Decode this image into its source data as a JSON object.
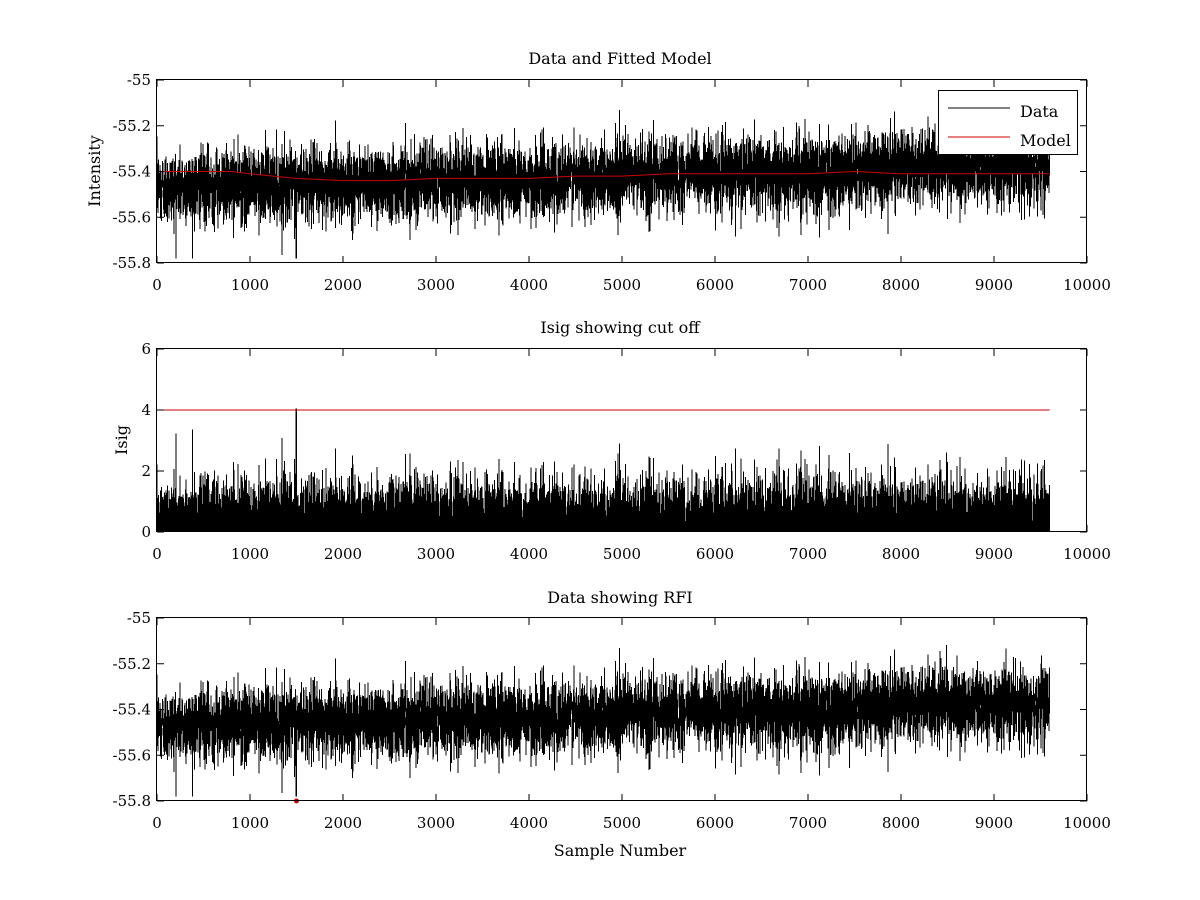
{
  "chart_data": [
    {
      "id": "top",
      "type": "line",
      "title": "Data and Fitted Model",
      "xlabel": "",
      "ylabel": "Intensity",
      "xlim": [
        0,
        10000
      ],
      "ylim": [
        -55.8,
        -55
      ],
      "xticks": [
        0,
        1000,
        2000,
        3000,
        4000,
        5000,
        6000,
        7000,
        8000,
        9000,
        10000
      ],
      "yticks": [
        -55,
        -55.2,
        -55.4,
        -55.6,
        -55.8
      ],
      "legend": {
        "position": "top-right",
        "entries": [
          "Data",
          "Model"
        ]
      },
      "series": [
        {
          "name": "Data",
          "color": "#000000",
          "kind": "noise",
          "n_samples": 9600,
          "trend_x": [
            0,
            1000,
            2000,
            3000,
            4000,
            5000,
            6000,
            7000,
            8000,
            9000,
            9600
          ],
          "trend_y": [
            -55.47,
            -55.46,
            -55.45,
            -55.44,
            -55.44,
            -55.42,
            -55.41,
            -55.41,
            -55.38,
            -55.38,
            -55.37
          ],
          "spread": 0.08,
          "min": -55.78,
          "max": -55.07
        },
        {
          "name": "Model",
          "color": "#cc0000",
          "x": [
            0,
            500,
            800,
            1000,
            1500,
            2000,
            2500,
            3000,
            3500,
            4000,
            4500,
            5000,
            5500,
            6000,
            6500,
            7000,
            7500,
            8000,
            8500,
            9000,
            9600
          ],
          "y": [
            -55.4,
            -55.4,
            -55.4,
            -55.41,
            -55.43,
            -55.44,
            -55.44,
            -55.43,
            -55.43,
            -55.43,
            -55.42,
            -55.42,
            -55.41,
            -55.41,
            -55.41,
            -55.41,
            -55.4,
            -55.41,
            -55.41,
            -55.41,
            -55.41
          ]
        }
      ]
    },
    {
      "id": "middle",
      "type": "line",
      "title": "Isig showing cut off",
      "xlabel": "",
      "ylabel": "Isig",
      "xlim": [
        0,
        10000
      ],
      "ylim": [
        0,
        6
      ],
      "xticks": [
        0,
        1000,
        2000,
        3000,
        4000,
        5000,
        6000,
        7000,
        8000,
        9000,
        10000
      ],
      "yticks": [
        0,
        2,
        4,
        6
      ],
      "series": [
        {
          "name": "Isig",
          "color": "#000000",
          "kind": "abs-noise",
          "n_samples": 9600,
          "scale": 0.8,
          "max": 4.05,
          "spike_x": 1500
        },
        {
          "name": "Cut off",
          "color": "#cc0000",
          "x": [
            0,
            9600
          ],
          "y": [
            4,
            4
          ]
        }
      ]
    },
    {
      "id": "bottom",
      "type": "line",
      "title": "Data showing RFI",
      "xlabel": "Sample Number",
      "ylabel": "",
      "xlim": [
        0,
        10000
      ],
      "ylim": [
        -55.8,
        -55
      ],
      "xticks": [
        0,
        1000,
        2000,
        3000,
        4000,
        5000,
        6000,
        7000,
        8000,
        9000,
        10000
      ],
      "yticks": [
        -55,
        -55.2,
        -55.4,
        -55.6,
        -55.8
      ],
      "series": [
        {
          "name": "Data",
          "color": "#000000",
          "kind": "noise",
          "n_samples": 9600,
          "trend_x": [
            0,
            1000,
            2000,
            3000,
            4000,
            5000,
            6000,
            7000,
            8000,
            9000,
            9600
          ],
          "trend_y": [
            -55.47,
            -55.46,
            -55.45,
            -55.44,
            -55.44,
            -55.42,
            -55.41,
            -55.41,
            -55.38,
            -55.38,
            -55.37
          ],
          "spread": 0.08,
          "min": -55.78,
          "max": -55.07
        },
        {
          "name": "RFI",
          "color": "#cc0000",
          "kind": "markers",
          "x": [
            1500
          ],
          "y": [
            -55.8
          ]
        }
      ]
    }
  ]
}
